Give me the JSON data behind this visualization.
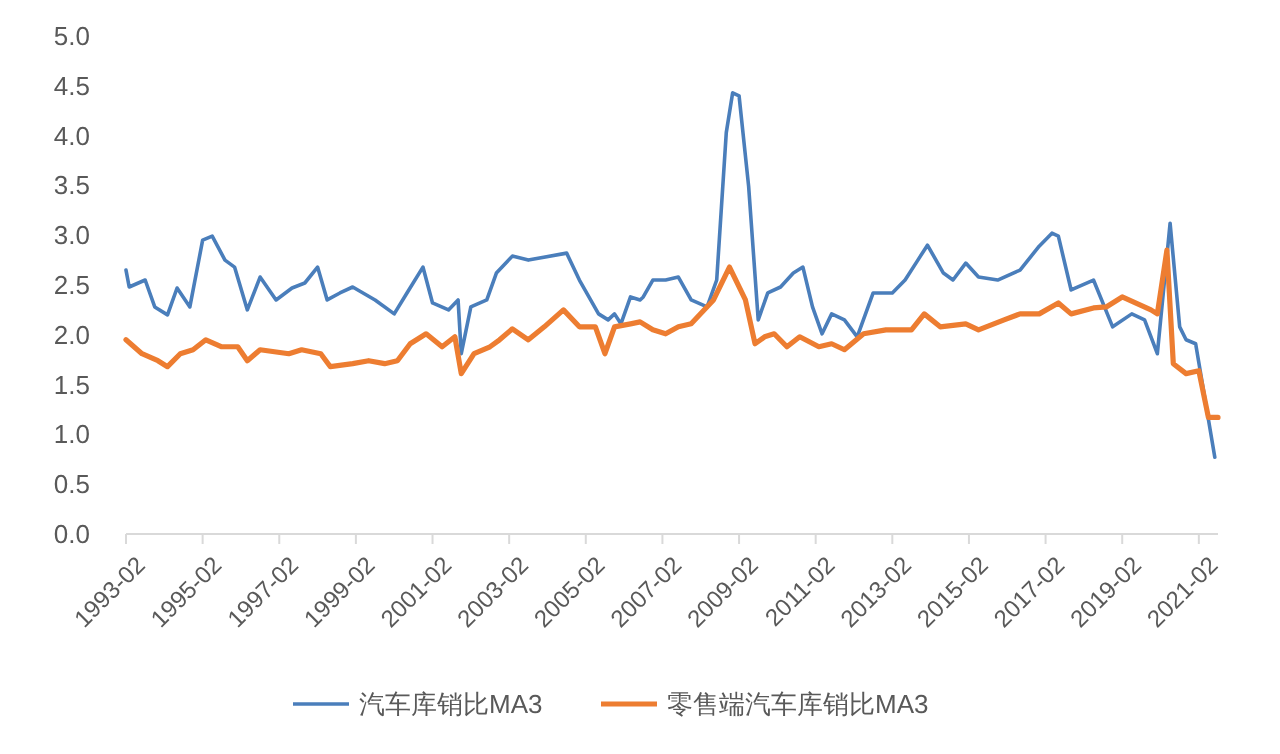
{
  "chart_data": {
    "type": "line",
    "xlim": [
      "1993-02",
      "2021-08"
    ],
    "ylim": [
      0,
      5
    ],
    "xticks": [
      "1993-02",
      "1995-02",
      "1997-02",
      "1999-02",
      "2001-02",
      "2003-02",
      "2005-02",
      "2007-02",
      "2009-02",
      "2011-02",
      "2013-02",
      "2015-02",
      "2017-02",
      "2019-02",
      "2021-02"
    ],
    "yticks": [
      {
        "value": 0,
        "label": "0.0"
      },
      {
        "value": 0.5,
        "label": "0.5"
      },
      {
        "value": 1,
        "label": "1.0"
      },
      {
        "value": 1.5,
        "label": "1.5"
      },
      {
        "value": 2,
        "label": "2.0"
      },
      {
        "value": 2.5,
        "label": "2.5"
      },
      {
        "value": 3,
        "label": "3.0"
      },
      {
        "value": 3.5,
        "label": "3.5"
      },
      {
        "value": 4,
        "label": "4.0"
      },
      {
        "value": 4.5,
        "label": "4.5"
      },
      {
        "value": 5,
        "label": "5.0"
      }
    ],
    "grid": false,
    "legend": "bottom",
    "marker": "none",
    "line_style": "solid",
    "series": [
      {
        "name": "汽车库销比MA3",
        "color": "#4a7ebb",
        "x": [
          "1993-02",
          "1993-03",
          "1993-08",
          "1993-11",
          "1994-03",
          "1994-06",
          "1994-10",
          "1995-02",
          "1995-05",
          "1995-09",
          "1995-12",
          "1996-04",
          "1996-08",
          "1997-01",
          "1997-06",
          "1997-10",
          "1998-02",
          "1998-05",
          "1998-09",
          "1999-01",
          "1999-08",
          "2000-02",
          "2000-06",
          "2000-11",
          "2001-02",
          "2001-07",
          "2001-10",
          "2001-11",
          "2002-02",
          "2002-07",
          "2002-10",
          "2003-03",
          "2003-08",
          "2004-08",
          "2004-12",
          "2005-06",
          "2005-09",
          "2005-11",
          "2006-01",
          "2006-04",
          "2006-07",
          "2006-08",
          "2006-11",
          "2007-03",
          "2007-07",
          "2007-11",
          "2008-04",
          "2008-07",
          "2008-10",
          "2008-12",
          "2009-02",
          "2009-05",
          "2009-08",
          "2009-11",
          "2010-03",
          "2010-07",
          "2010-10",
          "2011-01",
          "2011-04",
          "2011-07",
          "2011-11",
          "2012-03",
          "2012-08",
          "2013-02",
          "2013-06",
          "2013-10",
          "2014-01",
          "2014-06",
          "2014-09",
          "2015-01",
          "2015-05",
          "2015-11",
          "2016-06",
          "2016-12",
          "2017-04",
          "2017-06",
          "2017-10",
          "2018-05",
          "2018-11",
          "2019-05",
          "2019-09",
          "2020-01",
          "2020-05",
          "2020-08",
          "2020-10",
          "2021-01",
          "2021-07"
        ],
        "values": [
          2.65,
          2.48,
          2.55,
          2.28,
          2.2,
          2.47,
          2.28,
          2.95,
          2.99,
          2.75,
          2.68,
          2.25,
          2.58,
          2.35,
          2.47,
          2.52,
          2.68,
          2.35,
          2.42,
          2.48,
          2.35,
          2.21,
          2.42,
          2.68,
          2.32,
          2.25,
          2.35,
          1.81,
          2.28,
          2.35,
          2.62,
          2.79,
          2.75,
          2.82,
          2.55,
          2.21,
          2.15,
          2.21,
          2.11,
          2.38,
          2.35,
          2.38,
          2.55,
          2.55,
          2.58,
          2.35,
          2.28,
          2.55,
          4.03,
          4.43,
          4.4,
          3.49,
          2.15,
          2.42,
          2.48,
          2.62,
          2.68,
          2.28,
          2.01,
          2.21,
          2.15,
          1.98,
          2.42,
          2.42,
          2.55,
          2.75,
          2.9,
          2.62,
          2.55,
          2.72,
          2.58,
          2.55,
          2.65,
          2.89,
          3.02,
          2.99,
          2.45,
          2.55,
          2.08,
          2.21,
          2.15,
          1.81,
          3.12,
          2.08,
          1.95,
          1.91,
          0.77
        ]
      },
      {
        "name": "零售端汽车库销比MA3",
        "color": "#ed7d31",
        "x": [
          "1993-02",
          "1993-07",
          "1993-12",
          "1994-03",
          "1994-07",
          "1994-11",
          "1995-03",
          "1995-08",
          "1996-01",
          "1996-04",
          "1996-08",
          "1997-05",
          "1997-09",
          "1998-03",
          "1998-06",
          "1999-01",
          "1999-06",
          "1999-11",
          "2000-03",
          "2000-07",
          "2000-12",
          "2001-05",
          "2001-09",
          "2001-11",
          "2002-03",
          "2002-08",
          "2002-11",
          "2003-03",
          "2003-08",
          "2004-01",
          "2004-07",
          "2004-12",
          "2005-05",
          "2005-08",
          "2005-11",
          "2006-04",
          "2006-07",
          "2006-11",
          "2007-03",
          "2007-07",
          "2007-11",
          "2008-06",
          "2008-11",
          "2009-04",
          "2009-07",
          "2009-10",
          "2010-01",
          "2010-05",
          "2010-09",
          "2011-03",
          "2011-07",
          "2011-11",
          "2012-05",
          "2012-12",
          "2013-08",
          "2013-12",
          "2014-05",
          "2015-01",
          "2015-05",
          "2016-01",
          "2016-06",
          "2016-12",
          "2017-06",
          "2017-10",
          "2018-05",
          "2018-09",
          "2019-02",
          "2019-11",
          "2020-01",
          "2020-04",
          "2020-06",
          "2020-10",
          "2021-02",
          "2021-05",
          "2021-08"
        ],
        "values": [
          1.95,
          1.81,
          1.74,
          1.68,
          1.81,
          1.85,
          1.95,
          1.88,
          1.88,
          1.74,
          1.85,
          1.81,
          1.85,
          1.81,
          1.68,
          1.71,
          1.74,
          1.71,
          1.74,
          1.91,
          2.01,
          1.88,
          1.98,
          1.61,
          1.81,
          1.88,
          1.95,
          2.06,
          1.95,
          2.08,
          2.25,
          2.08,
          2.08,
          1.81,
          2.08,
          2.11,
          2.13,
          2.05,
          2.01,
          2.08,
          2.11,
          2.35,
          2.68,
          2.35,
          1.91,
          1.98,
          2.01,
          1.88,
          1.98,
          1.88,
          1.91,
          1.85,
          2.01,
          2.05,
          2.05,
          2.21,
          2.08,
          2.11,
          2.05,
          2.15,
          2.21,
          2.21,
          2.32,
          2.21,
          2.27,
          2.28,
          2.38,
          2.25,
          2.21,
          2.85,
          1.71,
          1.61,
          1.64,
          1.17,
          1.17
        ]
      }
    ]
  }
}
